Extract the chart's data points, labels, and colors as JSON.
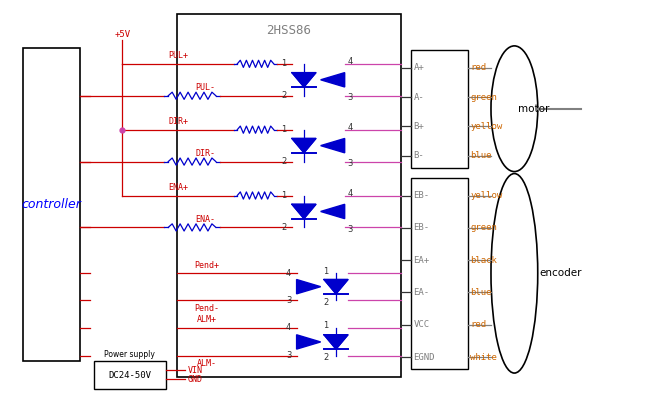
{
  "title": "2HSS86",
  "bg_color": "#ffffff",
  "wire_color_red": "#cc0000",
  "wire_color_blue": "#0000cc",
  "wire_color_dark": "#333333",
  "wire_color_pink": "#cc44aa",
  "text_color_orange": "#cc6600",
  "encoder_pins": [
    "EB-",
    "EB-",
    "EA+",
    "EA-",
    "VCC",
    "EGND"
  ],
  "encoder_colors": [
    "yellow",
    "green",
    "black",
    "blue",
    "red",
    "white"
  ],
  "motor_pins": [
    "A+",
    "A-",
    "B+",
    "B-"
  ],
  "motor_colors": [
    "red",
    "green",
    "yellow",
    "blue"
  ]
}
